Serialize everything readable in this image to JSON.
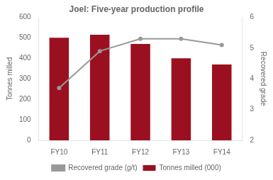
{
  "chart_data": {
    "type": "bar",
    "title": "Joel: Five-year production profile",
    "categories": [
      "FY10",
      "FY11",
      "FY12",
      "FY13",
      "FY14"
    ],
    "series": [
      {
        "name": "Tonnes milled (000)",
        "color": "#9b1020",
        "values": [
          500,
          515,
          470,
          400,
          370
        ]
      },
      {
        "name": "Recovered grade (g/t)",
        "color": "#999999",
        "values": [
          3.7,
          4.9,
          5.3,
          5.3,
          5.1
        ],
        "axis": "y2",
        "type": "line"
      }
    ],
    "ylim": [
      0,
      600
    ],
    "yticks": [
      0,
      100,
      200,
      300,
      400,
      500,
      600
    ],
    "y2lim": [
      2,
      6
    ],
    "y2ticks": [
      2,
      3,
      4,
      5,
      6
    ],
    "ylabel": "Tonnes milled",
    "y2label": "Recovered grade",
    "grid": false,
    "legend": "bottom"
  }
}
